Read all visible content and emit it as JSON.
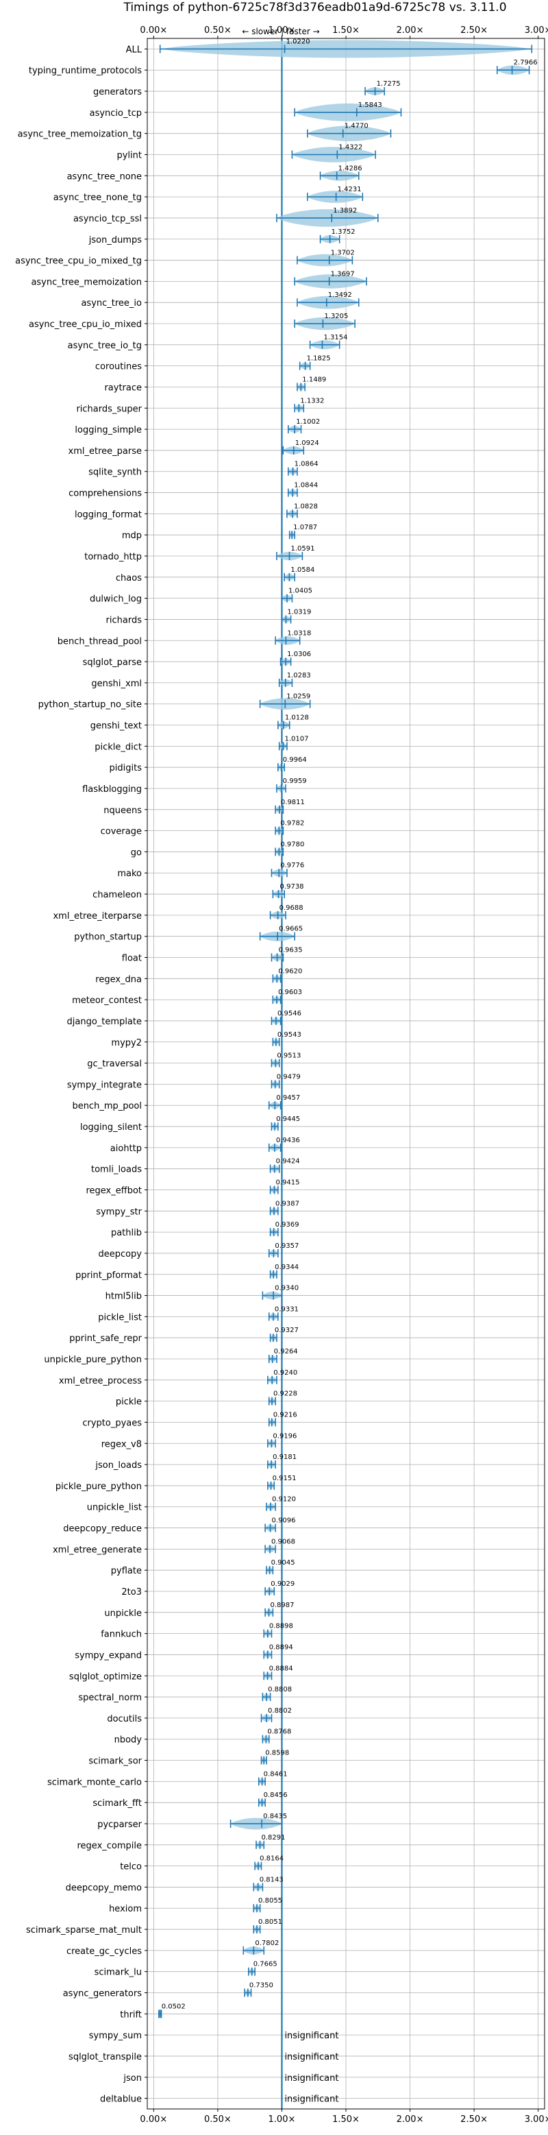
{
  "chart_data": {
    "type": "violin",
    "title": "Timings of python-6725c78f3d376eadb01a9d-6725c78 vs. 3.11.0",
    "direction_label": "← slower | faster →",
    "x_ticks": [
      "0.00×",
      "0.50×",
      "1.00×",
      "1.50×",
      "2.00×",
      "2.50×",
      "3.00×"
    ],
    "x_tick_values": [
      0,
      0.5,
      1.0,
      1.5,
      2.0,
      2.5,
      3.0
    ],
    "xlim": [
      -0.05,
      3.05
    ],
    "reference_line": 1.0,
    "grid": true,
    "colors": {
      "violin": "#9ecae1",
      "line": "#1f77b4",
      "median": "#e377c2"
    },
    "benchmarks": [
      {
        "name": "ALL",
        "value": "1.0220",
        "v": 1.022,
        "lo": 0.05,
        "hi": 2.95
      },
      {
        "name": "typing_runtime_protocols",
        "value": "2.7966",
        "v": 2.7966,
        "lo": 2.68,
        "hi": 2.93
      },
      {
        "name": "generators",
        "value": "1.7275",
        "v": 1.7275,
        "lo": 1.65,
        "hi": 1.8
      },
      {
        "name": "asyncio_tcp",
        "value": "1.5843",
        "v": 1.5843,
        "lo": 1.1,
        "hi": 1.93
      },
      {
        "name": "async_tree_memoization_tg",
        "value": "1.4770",
        "v": 1.477,
        "lo": 1.2,
        "hi": 1.85
      },
      {
        "name": "pylint",
        "value": "1.4322",
        "v": 1.4322,
        "lo": 1.08,
        "hi": 1.73
      },
      {
        "name": "async_tree_none",
        "value": "1.4286",
        "v": 1.4286,
        "lo": 1.3,
        "hi": 1.6
      },
      {
        "name": "async_tree_none_tg",
        "value": "1.4231",
        "v": 1.4231,
        "lo": 1.2,
        "hi": 1.63
      },
      {
        "name": "asyncio_tcp_ssl",
        "value": "1.3892",
        "v": 1.3892,
        "lo": 0.96,
        "hi": 1.75
      },
      {
        "name": "json_dumps",
        "value": "1.3752",
        "v": 1.3752,
        "lo": 1.3,
        "hi": 1.45
      },
      {
        "name": "async_tree_cpu_io_mixed_tg",
        "value": "1.3702",
        "v": 1.3702,
        "lo": 1.12,
        "hi": 1.55
      },
      {
        "name": "async_tree_memoization",
        "value": "1.3697",
        "v": 1.3697,
        "lo": 1.1,
        "hi": 1.66
      },
      {
        "name": "async_tree_io",
        "value": "1.3492",
        "v": 1.3492,
        "lo": 1.12,
        "hi": 1.6
      },
      {
        "name": "async_tree_cpu_io_mixed",
        "value": "1.3205",
        "v": 1.3205,
        "lo": 1.1,
        "hi": 1.57
      },
      {
        "name": "async_tree_io_tg",
        "value": "1.3154",
        "v": 1.3154,
        "lo": 1.22,
        "hi": 1.45
      },
      {
        "name": "coroutines",
        "value": "1.1825",
        "v": 1.1825,
        "lo": 1.14,
        "hi": 1.22
      },
      {
        "name": "raytrace",
        "value": "1.1489",
        "v": 1.1489,
        "lo": 1.12,
        "hi": 1.18
      },
      {
        "name": "richards_super",
        "value": "1.1332",
        "v": 1.1332,
        "lo": 1.1,
        "hi": 1.17
      },
      {
        "name": "logging_simple",
        "value": "1.1002",
        "v": 1.1002,
        "lo": 1.05,
        "hi": 1.15
      },
      {
        "name": "xml_etree_parse",
        "value": "1.0924",
        "v": 1.0924,
        "lo": 1.01,
        "hi": 1.17
      },
      {
        "name": "sqlite_synth",
        "value": "1.0864",
        "v": 1.0864,
        "lo": 1.05,
        "hi": 1.12
      },
      {
        "name": "comprehensions",
        "value": "1.0844",
        "v": 1.0844,
        "lo": 1.05,
        "hi": 1.12
      },
      {
        "name": "logging_format",
        "value": "1.0828",
        "v": 1.0828,
        "lo": 1.04,
        "hi": 1.12
      },
      {
        "name": "mdp",
        "value": "1.0787",
        "v": 1.0787,
        "lo": 1.06,
        "hi": 1.1
      },
      {
        "name": "tornado_http",
        "value": "1.0591",
        "v": 1.0591,
        "lo": 0.96,
        "hi": 1.16
      },
      {
        "name": "chaos",
        "value": "1.0584",
        "v": 1.0584,
        "lo": 1.02,
        "hi": 1.1
      },
      {
        "name": "dulwich_log",
        "value": "1.0405",
        "v": 1.0405,
        "lo": 1.0,
        "hi": 1.08
      },
      {
        "name": "richards",
        "value": "1.0319",
        "v": 1.0319,
        "lo": 1.0,
        "hi": 1.07
      },
      {
        "name": "bench_thread_pool",
        "value": "1.0318",
        "v": 1.0318,
        "lo": 0.95,
        "hi": 1.14
      },
      {
        "name": "sqlglot_parse",
        "value": "1.0306",
        "v": 1.0306,
        "lo": 0.99,
        "hi": 1.07
      },
      {
        "name": "genshi_xml",
        "value": "1.0283",
        "v": 1.0283,
        "lo": 0.98,
        "hi": 1.08
      },
      {
        "name": "python_startup_no_site",
        "value": "1.0259",
        "v": 1.0259,
        "lo": 0.83,
        "hi": 1.22
      },
      {
        "name": "genshi_text",
        "value": "1.0128",
        "v": 1.0128,
        "lo": 0.97,
        "hi": 1.06
      },
      {
        "name": "pickle_dict",
        "value": "1.0107",
        "v": 1.0107,
        "lo": 0.98,
        "hi": 1.04
      },
      {
        "name": "pidigits",
        "value": "0.9964",
        "v": 0.9964,
        "lo": 0.97,
        "hi": 1.02
      },
      {
        "name": "flaskblogging",
        "value": "0.9959",
        "v": 0.9959,
        "lo": 0.96,
        "hi": 1.03
      },
      {
        "name": "nqueens",
        "value": "0.9811",
        "v": 0.9811,
        "lo": 0.95,
        "hi": 1.01
      },
      {
        "name": "coverage",
        "value": "0.9782",
        "v": 0.9782,
        "lo": 0.95,
        "hi": 1.01
      },
      {
        "name": "go",
        "value": "0.9780",
        "v": 0.978,
        "lo": 0.95,
        "hi": 1.01
      },
      {
        "name": "mako",
        "value": "0.9776",
        "v": 0.9776,
        "lo": 0.92,
        "hi": 1.04
      },
      {
        "name": "chameleon",
        "value": "0.9738",
        "v": 0.9738,
        "lo": 0.93,
        "hi": 1.02
      },
      {
        "name": "xml_etree_iterparse",
        "value": "0.9688",
        "v": 0.9688,
        "lo": 0.91,
        "hi": 1.03
      },
      {
        "name": "python_startup",
        "value": "0.9665",
        "v": 0.9665,
        "lo": 0.83,
        "hi": 1.1
      },
      {
        "name": "float",
        "value": "0.9635",
        "v": 0.9635,
        "lo": 0.92,
        "hi": 1.01
      },
      {
        "name": "regex_dna",
        "value": "0.9620",
        "v": 0.962,
        "lo": 0.93,
        "hi": 0.99
      },
      {
        "name": "meteor_contest",
        "value": "0.9603",
        "v": 0.9603,
        "lo": 0.93,
        "hi": 0.99
      },
      {
        "name": "django_template",
        "value": "0.9546",
        "v": 0.9546,
        "lo": 0.92,
        "hi": 0.99
      },
      {
        "name": "mypy2",
        "value": "0.9543",
        "v": 0.9543,
        "lo": 0.93,
        "hi": 0.98
      },
      {
        "name": "gc_traversal",
        "value": "0.9513",
        "v": 0.9513,
        "lo": 0.92,
        "hi": 0.98
      },
      {
        "name": "sympy_integrate",
        "value": "0.9479",
        "v": 0.9479,
        "lo": 0.92,
        "hi": 0.98
      },
      {
        "name": "bench_mp_pool",
        "value": "0.9457",
        "v": 0.9457,
        "lo": 0.9,
        "hi": 0.99
      },
      {
        "name": "logging_silent",
        "value": "0.9445",
        "v": 0.9445,
        "lo": 0.92,
        "hi": 0.97
      },
      {
        "name": "aiohttp",
        "value": "0.9436",
        "v": 0.9436,
        "lo": 0.9,
        "hi": 0.99
      },
      {
        "name": "tomli_loads",
        "value": "0.9424",
        "v": 0.9424,
        "lo": 0.91,
        "hi": 0.98
      },
      {
        "name": "regex_effbot",
        "value": "0.9415",
        "v": 0.9415,
        "lo": 0.91,
        "hi": 0.97
      },
      {
        "name": "sympy_str",
        "value": "0.9387",
        "v": 0.9387,
        "lo": 0.91,
        "hi": 0.97
      },
      {
        "name": "pathlib",
        "value": "0.9369",
        "v": 0.9369,
        "lo": 0.91,
        "hi": 0.97
      },
      {
        "name": "deepcopy",
        "value": "0.9357",
        "v": 0.9357,
        "lo": 0.9,
        "hi": 0.97
      },
      {
        "name": "pprint_pformat",
        "value": "0.9344",
        "v": 0.9344,
        "lo": 0.91,
        "hi": 0.96
      },
      {
        "name": "html5lib",
        "value": "0.9340",
        "v": 0.934,
        "lo": 0.85,
        "hi": 1.0
      },
      {
        "name": "pickle_list",
        "value": "0.9331",
        "v": 0.9331,
        "lo": 0.9,
        "hi": 0.97
      },
      {
        "name": "pprint_safe_repr",
        "value": "0.9327",
        "v": 0.9327,
        "lo": 0.91,
        "hi": 0.96
      },
      {
        "name": "unpickle_pure_python",
        "value": "0.9264",
        "v": 0.9264,
        "lo": 0.9,
        "hi": 0.96
      },
      {
        "name": "xml_etree_process",
        "value": "0.9240",
        "v": 0.924,
        "lo": 0.89,
        "hi": 0.96
      },
      {
        "name": "pickle",
        "value": "0.9228",
        "v": 0.9228,
        "lo": 0.9,
        "hi": 0.95
      },
      {
        "name": "crypto_pyaes",
        "value": "0.9216",
        "v": 0.9216,
        "lo": 0.9,
        "hi": 0.95
      },
      {
        "name": "regex_v8",
        "value": "0.9196",
        "v": 0.9196,
        "lo": 0.89,
        "hi": 0.95
      },
      {
        "name": "json_loads",
        "value": "0.9181",
        "v": 0.9181,
        "lo": 0.89,
        "hi": 0.95
      },
      {
        "name": "pickle_pure_python",
        "value": "0.9151",
        "v": 0.9151,
        "lo": 0.89,
        "hi": 0.94
      },
      {
        "name": "unpickle_list",
        "value": "0.9120",
        "v": 0.912,
        "lo": 0.88,
        "hi": 0.95
      },
      {
        "name": "deepcopy_reduce",
        "value": "0.9096",
        "v": 0.9096,
        "lo": 0.87,
        "hi": 0.95
      },
      {
        "name": "xml_etree_generate",
        "value": "0.9068",
        "v": 0.9068,
        "lo": 0.87,
        "hi": 0.95
      },
      {
        "name": "pyflate",
        "value": "0.9045",
        "v": 0.9045,
        "lo": 0.88,
        "hi": 0.93
      },
      {
        "name": "2to3",
        "value": "0.9029",
        "v": 0.9029,
        "lo": 0.87,
        "hi": 0.94
      },
      {
        "name": "unpickle",
        "value": "0.8987",
        "v": 0.8987,
        "lo": 0.87,
        "hi": 0.93
      },
      {
        "name": "fannkuch",
        "value": "0.8898",
        "v": 0.8898,
        "lo": 0.86,
        "hi": 0.92
      },
      {
        "name": "sympy_expand",
        "value": "0.8894",
        "v": 0.8894,
        "lo": 0.86,
        "hi": 0.92
      },
      {
        "name": "sqlglot_optimize",
        "value": "0.8884",
        "v": 0.8884,
        "lo": 0.86,
        "hi": 0.92
      },
      {
        "name": "spectral_norm",
        "value": "0.8808",
        "v": 0.8808,
        "lo": 0.85,
        "hi": 0.91
      },
      {
        "name": "docutils",
        "value": "0.8802",
        "v": 0.8802,
        "lo": 0.84,
        "hi": 0.92
      },
      {
        "name": "nbody",
        "value": "0.8768",
        "v": 0.8768,
        "lo": 0.85,
        "hi": 0.9
      },
      {
        "name": "scimark_sor",
        "value": "0.8598",
        "v": 0.8598,
        "lo": 0.84,
        "hi": 0.88
      },
      {
        "name": "scimark_monte_carlo",
        "value": "0.8461",
        "v": 0.8461,
        "lo": 0.82,
        "hi": 0.87
      },
      {
        "name": "scimark_fft",
        "value": "0.8456",
        "v": 0.8456,
        "lo": 0.82,
        "hi": 0.87
      },
      {
        "name": "pycparser",
        "value": "0.8435",
        "v": 0.8435,
        "lo": 0.6,
        "hi": 1.0
      },
      {
        "name": "regex_compile",
        "value": "0.8291",
        "v": 0.8291,
        "lo": 0.8,
        "hi": 0.86
      },
      {
        "name": "telco",
        "value": "0.8164",
        "v": 0.8164,
        "lo": 0.79,
        "hi": 0.84
      },
      {
        "name": "deepcopy_memo",
        "value": "0.8143",
        "v": 0.8143,
        "lo": 0.78,
        "hi": 0.85
      },
      {
        "name": "hexiom",
        "value": "0.8055",
        "v": 0.8055,
        "lo": 0.78,
        "hi": 0.83
      },
      {
        "name": "scimark_sparse_mat_mult",
        "value": "0.8051",
        "v": 0.8051,
        "lo": 0.78,
        "hi": 0.83
      },
      {
        "name": "create_gc_cycles",
        "value": "0.7802",
        "v": 0.7802,
        "lo": 0.7,
        "hi": 0.86
      },
      {
        "name": "scimark_lu",
        "value": "0.7665",
        "v": 0.7665,
        "lo": 0.74,
        "hi": 0.79
      },
      {
        "name": "async_generators",
        "value": "0.7350",
        "v": 0.735,
        "lo": 0.71,
        "hi": 0.76
      },
      {
        "name": "thrift",
        "value": "0.0502",
        "v": 0.0502,
        "lo": 0.04,
        "hi": 0.06
      },
      {
        "name": "sympy_sum",
        "value": "insignificant",
        "v": null
      },
      {
        "name": "sqlglot_transpile",
        "value": "insignificant",
        "v": null
      },
      {
        "name": "json",
        "value": "insignificant",
        "v": null
      },
      {
        "name": "deltablue",
        "value": "insignificant",
        "v": null
      }
    ]
  }
}
